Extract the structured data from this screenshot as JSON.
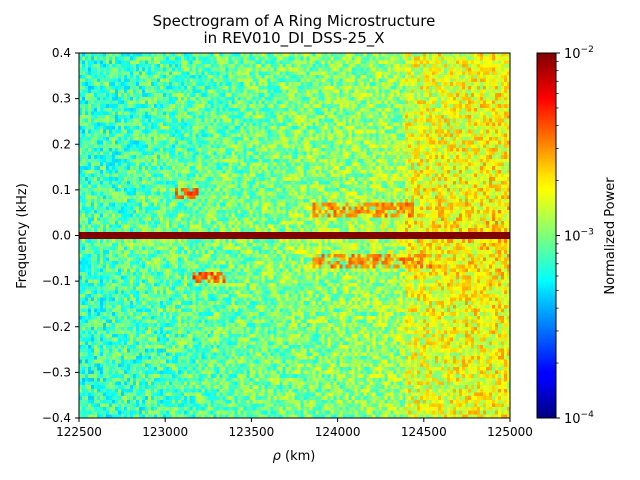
{
  "chart_data": {
    "type": "heatmap",
    "title": "Spectrogram of A Ring Microstructure",
    "subtitle": "in REV010_DI_DSS-25_X",
    "xlabel_symbol": "ρ",
    "xlabel_unit": "(km)",
    "ylabel": "Frequency (kHz)",
    "xlim": [
      122500,
      125000
    ],
    "ylim": [
      -0.4,
      0.4
    ],
    "x_ticks": [
      122500,
      123000,
      123500,
      124000,
      124500,
      125000
    ],
    "y_ticks": [
      -0.4,
      -0.3,
      -0.2,
      -0.1,
      0.0,
      0.1,
      0.2,
      0.3,
      0.4
    ],
    "y_tick_labels": [
      "−0.4",
      "−0.3",
      "−0.2",
      "−0.1",
      "0.0",
      "0.1",
      "0.2",
      "0.3",
      "0.4"
    ],
    "colorbar": {
      "label": "Normalized Power",
      "scale": "log",
      "range": [
        0.0001,
        0.01
      ],
      "tick_labels": [
        {
          "value": 0.01,
          "base": "10",
          "exp": "−2"
        },
        {
          "value": 0.001,
          "base": "10",
          "exp": "−3"
        },
        {
          "value": 0.0001,
          "base": "10",
          "exp": "−4"
        }
      ],
      "colormap": "jet"
    },
    "features": [
      {
        "name": "carrier",
        "freq": 0.0,
        "x_range": [
          122500,
          125000
        ],
        "power": 0.01
      },
      {
        "name": "upper sideband 1",
        "freq_range": [
          0.08,
          0.1
        ],
        "x_range": [
          123050,
          123200
        ],
        "power": 0.005
      },
      {
        "name": "lower sideband 1",
        "freq_range": [
          -0.1,
          -0.08
        ],
        "x_range": [
          123150,
          123350
        ],
        "power": 0.005
      },
      {
        "name": "upper sideband 2",
        "freq_range": [
          0.04,
          0.07
        ],
        "x_range": [
          123850,
          124450
        ],
        "power": 0.004
      },
      {
        "name": "lower sideband 2",
        "freq_range": [
          -0.07,
          -0.04
        ],
        "x_range": [
          123850,
          124550
        ],
        "power": 0.004
      }
    ]
  }
}
